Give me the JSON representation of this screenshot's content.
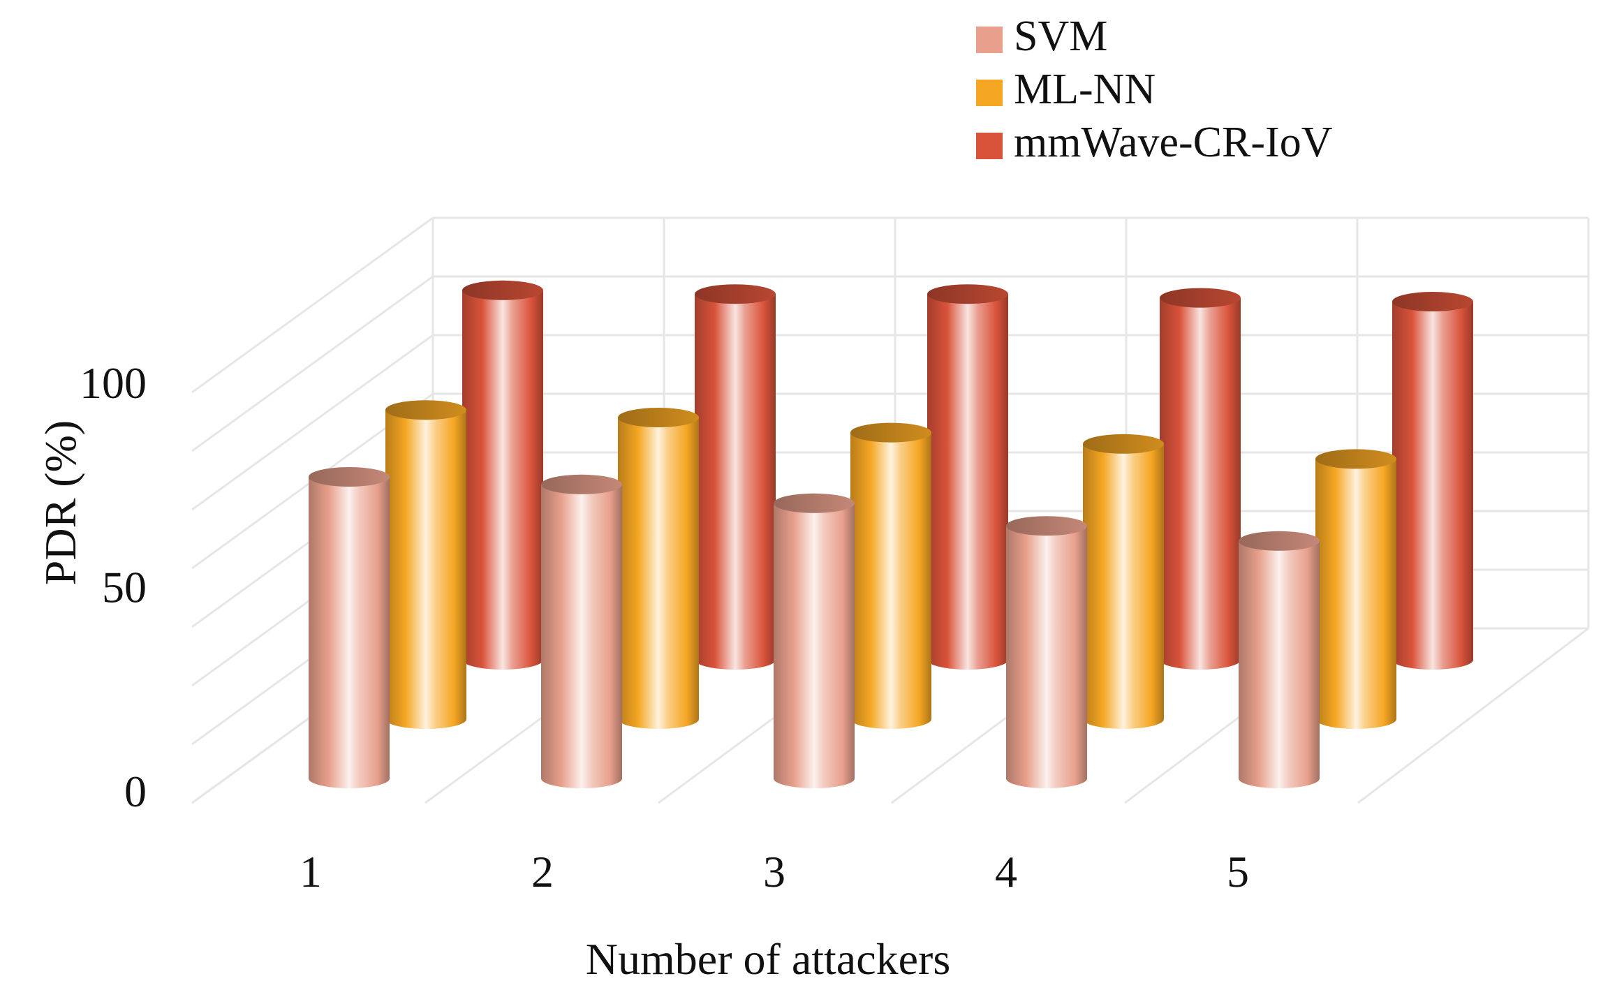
{
  "chart_data": {
    "type": "bar",
    "style": "3d-cylinder-clustered",
    "categories": [
      "1",
      "2",
      "3",
      "4",
      "5"
    ],
    "series": [
      {
        "name": "SVM",
        "values": [
          80,
          78,
          73,
          67,
          63
        ],
        "color": "#E8A08C"
      },
      {
        "name": "ML-NN",
        "values": [
          82,
          80,
          76,
          73,
          69
        ],
        "color": "#F5A623"
      },
      {
        "name": "mmWave-CR-IoV",
        "values": [
          98,
          97,
          97,
          96,
          95
        ],
        "color": "#D9533A"
      }
    ],
    "xlabel": "Number of attackers",
    "ylabel": "PDR (%)",
    "ylim": [
      0,
      100
    ],
    "yticks": [
      "0",
      "50",
      "100"
    ],
    "grid": true,
    "legend": "top-right"
  }
}
